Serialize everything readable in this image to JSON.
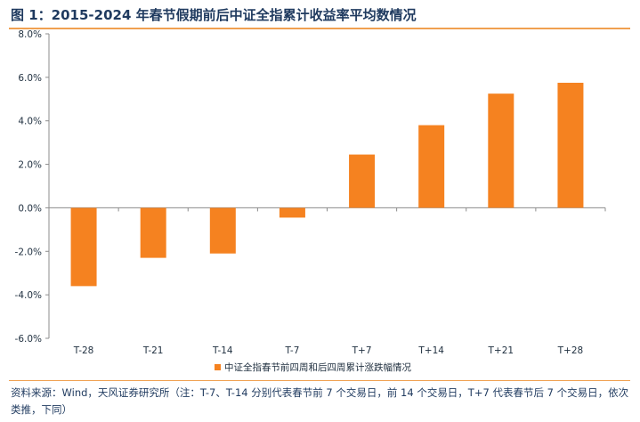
{
  "figure": {
    "title": "图 1：2015-2024 年春节假期前后中证全指累计收益率平均数情况",
    "source_note": "资料来源：Wind，天风证券研究所（注：T-7、T-14 分别代表春节前 7 个交易日，前 14 个交易日，T+7 代表春节后 7 个交易日，依次类推，下同）"
  },
  "chart_data": {
    "type": "bar",
    "categories": [
      "T-28",
      "T-21",
      "T-14",
      "T-7",
      "T+7",
      "T+14",
      "T+21",
      "T+28"
    ],
    "series": [
      {
        "name": "中证全指春节前四周和后四周累计涨跌幅情况",
        "values": [
          -3.6,
          -2.3,
          -2.1,
          -0.45,
          2.45,
          3.8,
          5.25,
          5.75
        ]
      }
    ],
    "ylim": [
      -6,
      8
    ],
    "yticks": [
      8,
      6,
      4,
      2,
      0,
      -2,
      -4,
      -6
    ],
    "ytick_labels": [
      "8.0%",
      "6.0%",
      "4.0%",
      "2.0%",
      "0.0%",
      "-2.0%",
      "-4.0%",
      "-6.0%"
    ],
    "bar_color": "#f58220",
    "legend_position": "bottom-center",
    "grid": false
  }
}
